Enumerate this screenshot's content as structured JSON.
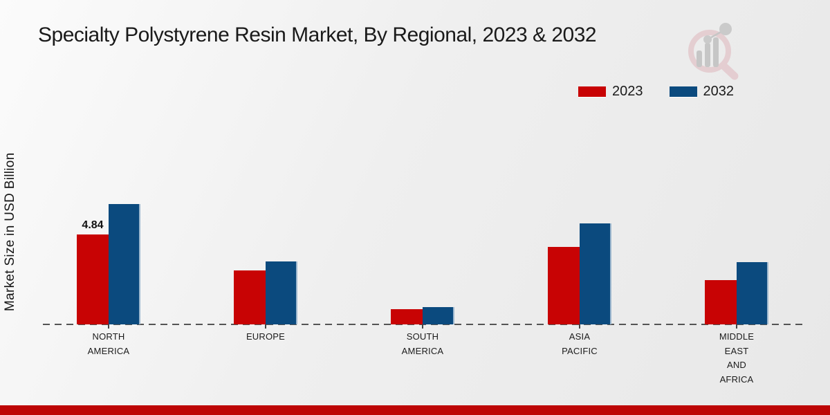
{
  "title": "Specialty Polystyrene Resin Market, By Regional, 2023 & 2032",
  "y_axis_label": "Market Size in USD Billion",
  "legend": {
    "position": "top-right",
    "items": [
      {
        "label": "2023",
        "color": "#c80304"
      },
      {
        "label": "2032",
        "color": "#0b4a7e"
      }
    ]
  },
  "chart_data": {
    "type": "bar",
    "title": "Specialty Polystyrene Resin Market, By Regional, 2023 & 2032",
    "xlabel": "",
    "ylabel": "Market Size in USD Billion",
    "categories": [
      "NORTH AMERICA",
      "EUROPE",
      "SOUTH AMERICA",
      "ASIA PACIFIC",
      "MIDDLE EAST AND AFRICA"
    ],
    "series": [
      {
        "name": "2023",
        "color": "#c80304",
        "values": [
          4.84,
          2.9,
          0.81,
          4.17,
          2.38
        ]
      },
      {
        "name": "2032",
        "color": "#0b4a7e",
        "values": [
          6.48,
          3.39,
          0.94,
          5.43,
          3.34
        ]
      }
    ],
    "data_labels": [
      {
        "series": 0,
        "category": 0,
        "text": "4.84"
      }
    ],
    "ylim": [
      0,
      7
    ],
    "grid": false,
    "legend_position": "top-right",
    "baseline_style": "dashed"
  },
  "icons": {
    "watermark": "magnifier-bar-chart-logo"
  },
  "colors": {
    "background_top": "#fbfbfb",
    "background_bottom": "#e8e8e8",
    "baseline": "#545454",
    "footer_bar": "#bd0505",
    "title_text": "#1a1a1a"
  }
}
